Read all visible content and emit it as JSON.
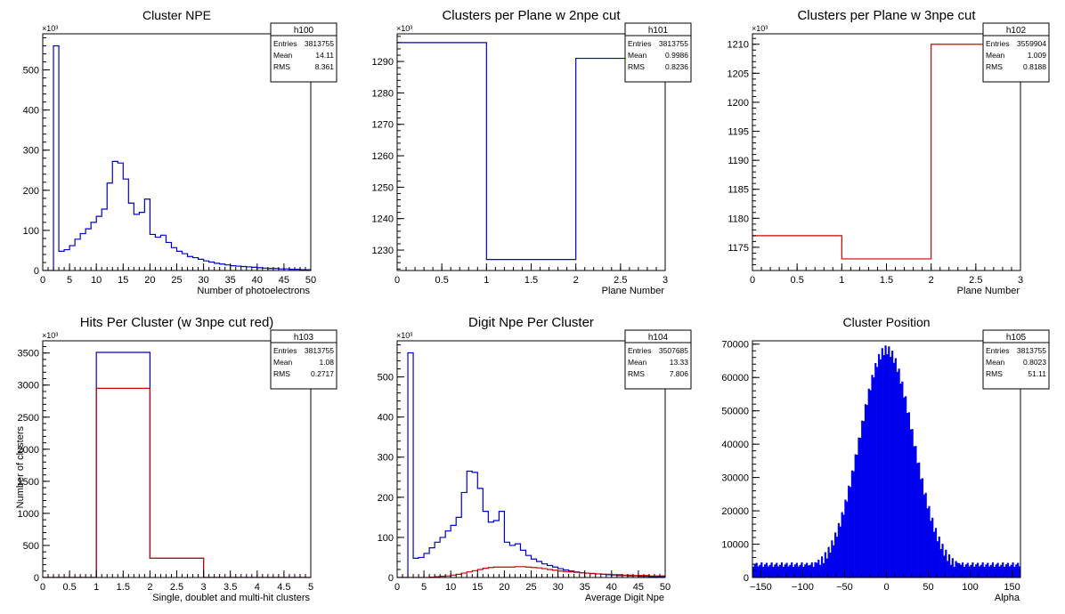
{
  "chart_data": [
    {
      "type": "bar",
      "title": "Cluster NPE",
      "xlabel": "Number of photoelectrons",
      "ylabel": "",
      "xlim": [
        0,
        50
      ],
      "ylim": [
        0,
        590
      ],
      "xticks": [
        0,
        5,
        10,
        15,
        20,
        25,
        30,
        35,
        40,
        45,
        50
      ],
      "yticks": [
        0,
        100,
        200,
        300,
        400,
        500
      ],
      "exponent": "×10³",
      "stats": {
        "name": "h100",
        "rows": [
          [
            "Entries",
            "3813755"
          ],
          [
            "Mean",
            "14.11"
          ],
          [
            "RMS",
            "8.361"
          ]
        ]
      },
      "series": [
        {
          "color": "#0000cc",
          "bin_width": 1,
          "x_start": 0,
          "values": [
            0,
            0,
            560,
            48,
            52,
            62,
            78,
            92,
            104,
            120,
            135,
            153,
            218,
            272,
            268,
            228,
            168,
            140,
            145,
            178,
            90,
            83,
            88,
            70,
            57,
            48,
            42,
            35,
            32,
            28,
            24,
            21,
            18,
            16,
            14,
            12,
            11,
            10,
            9,
            8,
            7,
            6,
            5,
            5,
            4,
            4,
            3,
            3,
            2,
            2
          ]
        }
      ]
    },
    {
      "type": "bar",
      "title": "Clusters per Plane w 2npe cut",
      "xlabel": "Plane Number",
      "ylabel": "",
      "xlim": [
        0,
        3
      ],
      "ylim": [
        1223.5,
        1298.8
      ],
      "xticks": [
        0,
        0.5,
        1,
        1.5,
        2,
        2.5,
        3
      ],
      "yticks": [
        1230,
        1240,
        1250,
        1260,
        1270,
        1280,
        1290
      ],
      "exponent": "×10³",
      "stats": {
        "name": "h101",
        "rows": [
          [
            "Entries",
            "3813755"
          ],
          [
            "Mean",
            "0.9986"
          ],
          [
            "RMS",
            "0.8236"
          ]
        ]
      },
      "series": [
        {
          "color": "#0000cc",
          "bin_width": 1,
          "x_start": 0,
          "values": [
            1296,
            1227,
            1291
          ]
        }
      ]
    },
    {
      "type": "bar",
      "title": "Clusters per Plane w 3npe cut",
      "xlabel": "Plane Number",
      "ylabel": "",
      "xlim": [
        0,
        3
      ],
      "ylim": [
        1171,
        1211.8
      ],
      "xticks": [
        0,
        0.5,
        1,
        1.5,
        2,
        2.5,
        3
      ],
      "yticks": [
        1175,
        1180,
        1185,
        1190,
        1195,
        1200,
        1205,
        1210
      ],
      "exponent": "×10³",
      "stats": {
        "name": "h102",
        "rows": [
          [
            "Entries",
            "3559904"
          ],
          [
            "Mean",
            "1.009"
          ],
          [
            "RMS",
            "0.8188"
          ]
        ]
      },
      "series": [
        {
          "color": "#cc0000",
          "bin_width": 1,
          "x_start": 0,
          "values": [
            1177,
            1173,
            1210
          ]
        }
      ]
    },
    {
      "type": "bar",
      "title": "Hits Per Cluster (w 3npe cut red)",
      "xlabel": "Single, doublet and multi-hit clusters",
      "ylabel": "Number of clusters",
      "xlim": [
        0,
        5
      ],
      "ylim": [
        0,
        3690
      ],
      "xticks": [
        0,
        0.5,
        1,
        1.5,
        2,
        2.5,
        3,
        3.5,
        4,
        4.5,
        5
      ],
      "yticks": [
        0,
        500,
        1000,
        1500,
        2000,
        2500,
        3000,
        3500
      ],
      "exponent": "×10³",
      "stats": {
        "name": "h103",
        "rows": [
          [
            "Entries",
            "3813755"
          ],
          [
            "Mean",
            "1.08"
          ],
          [
            "RMS",
            "0.2717"
          ]
        ]
      },
      "series": [
        {
          "color": "#0000cc",
          "bin_width": 1,
          "x_start": 0,
          "values": [
            0,
            3510,
            300,
            0,
            0
          ]
        },
        {
          "color": "#cc0000",
          "bin_width": 1,
          "x_start": 0,
          "values": [
            0,
            2950,
            300,
            0,
            0
          ]
        }
      ]
    },
    {
      "type": "bar",
      "title": "Digit Npe Per Cluster",
      "xlabel": "Average Digit Npe",
      "ylabel": "",
      "xlim": [
        0,
        50
      ],
      "ylim": [
        0,
        590
      ],
      "xticks": [
        0,
        5,
        10,
        15,
        20,
        25,
        30,
        35,
        40,
        45,
        50
      ],
      "yticks": [
        0,
        100,
        200,
        300,
        400,
        500
      ],
      "exponent": "×10³",
      "stats": {
        "name": "h104",
        "rows": [
          [
            "Entries",
            "3507685"
          ],
          [
            "Mean",
            "13.33"
          ],
          [
            "RMS",
            "7.806"
          ]
        ]
      },
      "series": [
        {
          "color": "#0000cc",
          "bin_width": 1,
          "x_start": 0,
          "values": [
            0,
            0,
            560,
            48,
            50,
            60,
            74,
            88,
            100,
            116,
            130,
            150,
            212,
            265,
            262,
            222,
            165,
            138,
            142,
            165,
            88,
            80,
            84,
            68,
            55,
            46,
            40,
            34,
            30,
            26,
            22,
            19,
            16,
            14,
            12,
            11,
            10,
            9,
            8,
            7,
            6,
            5,
            5,
            4,
            4,
            3,
            3,
            2,
            2,
            2
          ]
        },
        {
          "color": "#cc0000",
          "bin_width": 1,
          "x_start": 0,
          "values": [
            0,
            0,
            0,
            0,
            0,
            0,
            1,
            2,
            3,
            4,
            6,
            8,
            11,
            14,
            17,
            20,
            23,
            25,
            26,
            26,
            26,
            26,
            27,
            27,
            26,
            25,
            24,
            22,
            20,
            18,
            16,
            15,
            14,
            13,
            12,
            11,
            10,
            9,
            8,
            8,
            7,
            7,
            6,
            6,
            5,
            5,
            5,
            4,
            4,
            4
          ]
        }
      ]
    },
    {
      "type": "bar",
      "title": "Cluster Position",
      "xlabel": "Alpha",
      "ylabel": "",
      "xlim": [
        -160,
        160
      ],
      "ylim": [
        0,
        71000
      ],
      "xticks": [
        -150,
        -100,
        -50,
        0,
        50,
        100,
        150
      ],
      "yticks": [
        0,
        10000,
        20000,
        30000,
        40000,
        50000,
        60000,
        70000
      ],
      "exponent": "",
      "stats": {
        "name": "h105",
        "rows": [
          [
            "Entries",
            "3813755"
          ],
          [
            "Mean",
            "0.8023"
          ],
          [
            "RMS",
            "51.11"
          ]
        ]
      },
      "series": [
        {
          "color": "#0000ee",
          "style": "spiky",
          "x_start": -160,
          "bin_width": 320,
          "peak_center": 0,
          "peak_height": 67000,
          "peak_sigma": 32,
          "base": 3200,
          "low": 5200,
          "step": 2
        }
      ]
    }
  ]
}
